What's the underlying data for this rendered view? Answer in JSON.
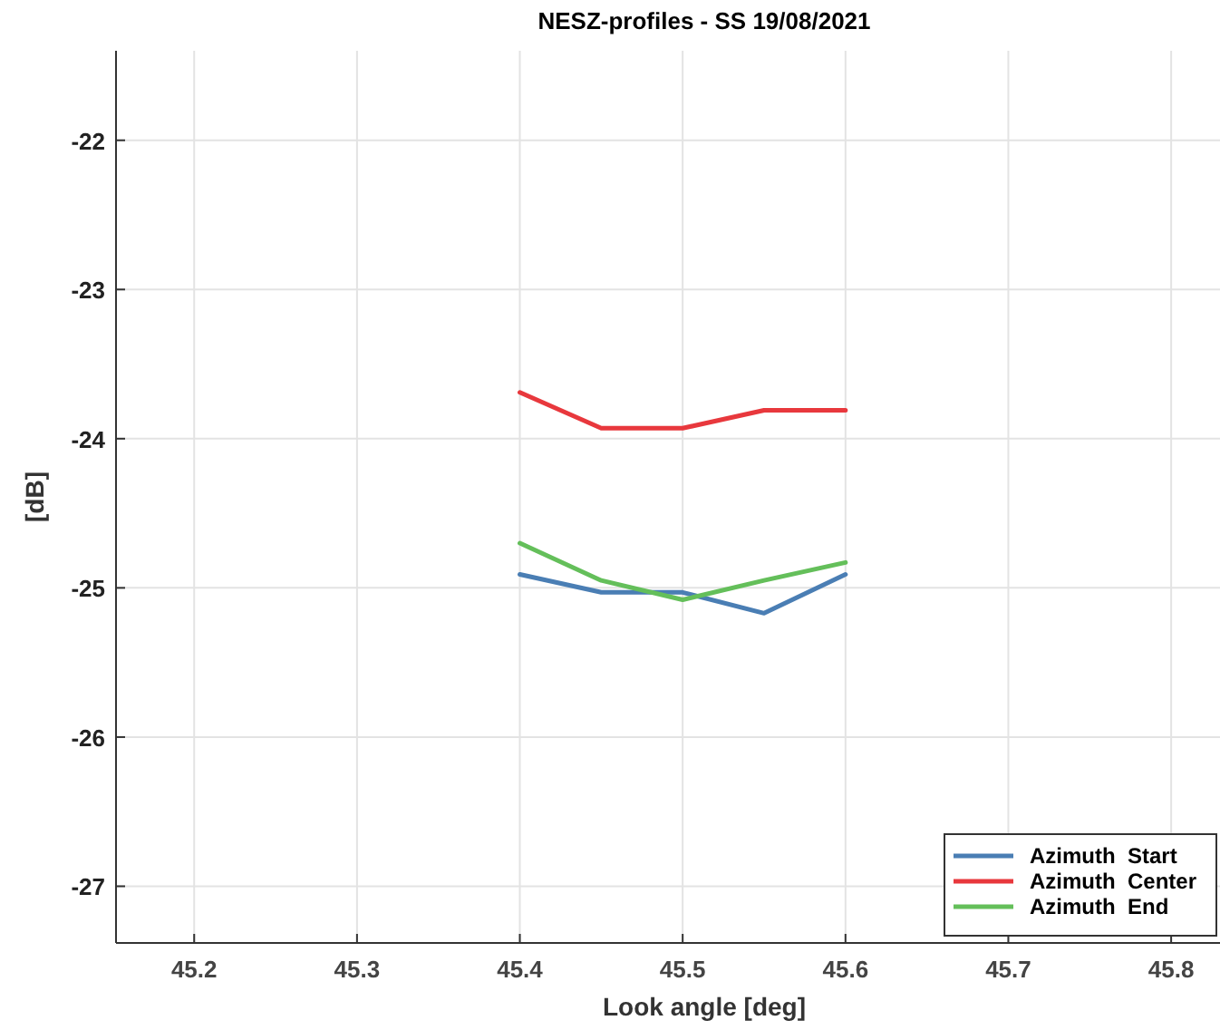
{
  "chart_data": {
    "type": "line",
    "title": "NESZ-profiles - SS 19/08/2021",
    "xlabel": "Look angle [deg]",
    "ylabel": "[dB]",
    "x": [
      45.4,
      45.45,
      45.5,
      45.55,
      45.6
    ],
    "series": [
      {
        "name": "Azimuth  Start",
        "color": "#4a7eb4",
        "values": [
          -24.91,
          -25.03,
          -25.03,
          -25.17,
          -24.91
        ]
      },
      {
        "name": "Azimuth  Center",
        "color": "#e8383d",
        "values": [
          -23.69,
          -23.93,
          -23.93,
          -23.81,
          -23.81
        ]
      },
      {
        "name": "Azimuth  End",
        "color": "#64bf5a",
        "values": [
          -24.7,
          -24.95,
          -25.08,
          -24.95,
          -24.83
        ]
      }
    ],
    "xlim": [
      45.152,
      45.83
    ],
    "xticks": [
      45.2,
      45.3,
      45.4,
      45.5,
      45.6,
      45.7,
      45.8
    ],
    "ylim": [
      -27.38,
      -21.4
    ],
    "yticks": [
      -27,
      -26,
      -25,
      -24,
      -23,
      -22
    ],
    "grid": true,
    "legend": "bottom right",
    "line_style": "solid",
    "marker": "none"
  }
}
